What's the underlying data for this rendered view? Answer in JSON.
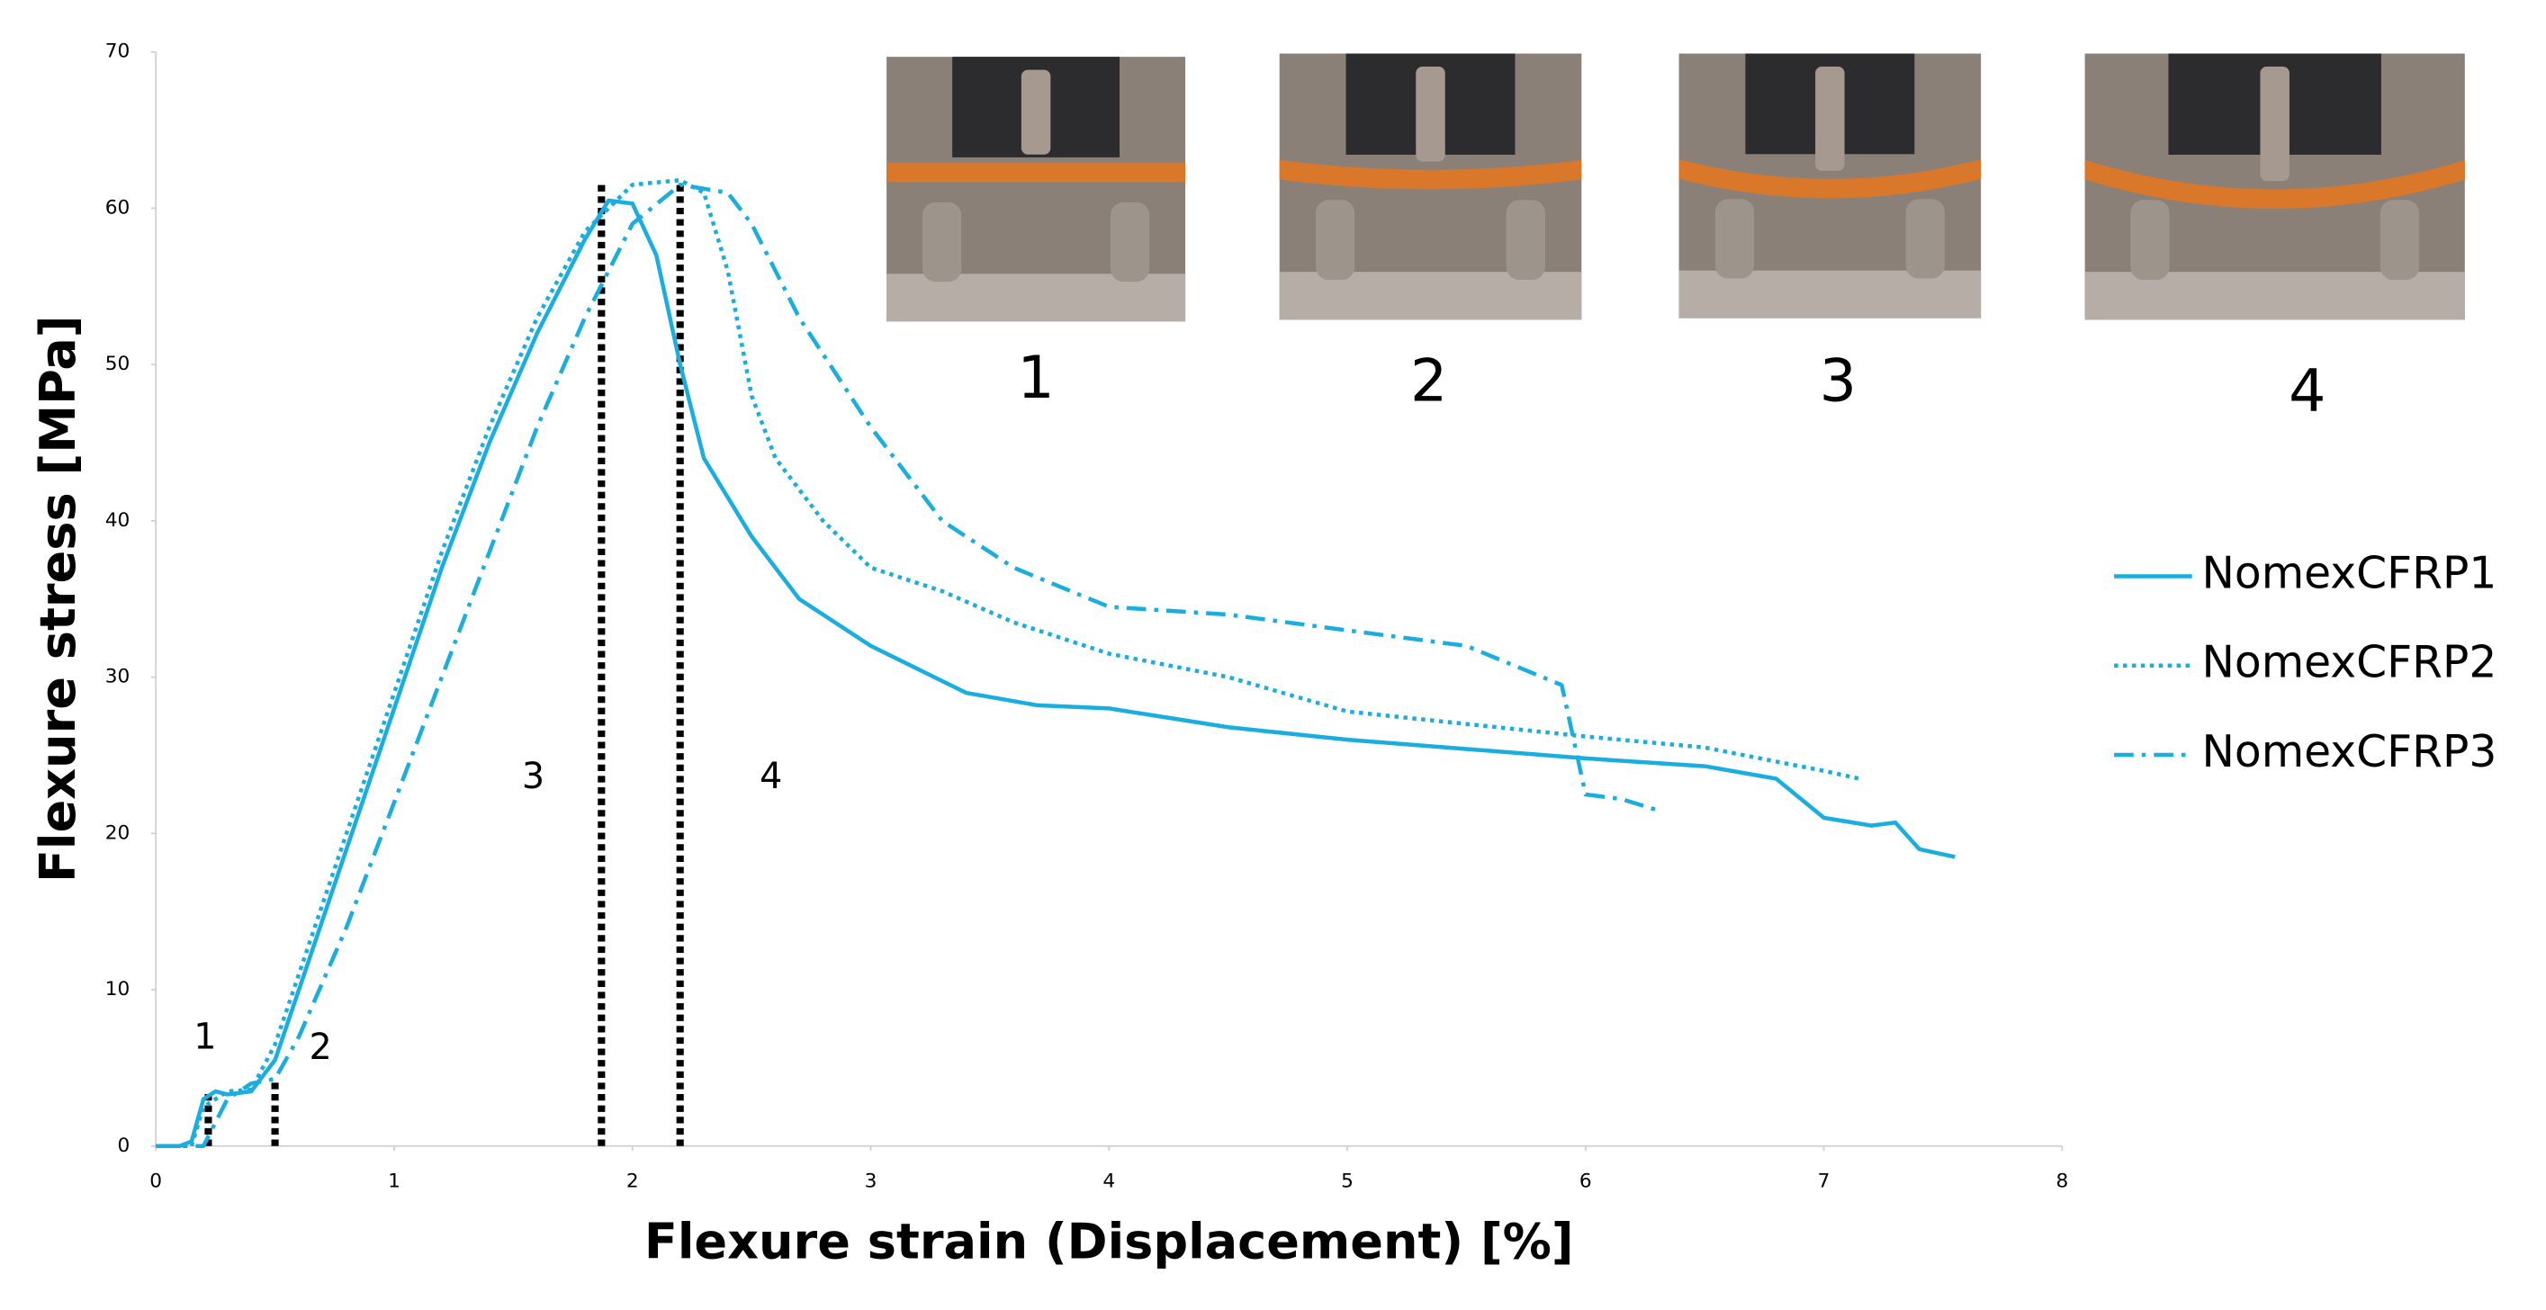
{
  "chart_data": {
    "type": "line",
    "xlabel": "Flexure strain (Displacement) [%]",
    "ylabel": "Flexure stress [MPa]",
    "xlim": [
      0,
      8
    ],
    "xticks": [
      0,
      1,
      2,
      3,
      4,
      5,
      6,
      7,
      8
    ],
    "ylim": [
      0,
      70
    ],
    "yticks": [
      0,
      10,
      20,
      30,
      40,
      50,
      60,
      70
    ],
    "grid": false,
    "legend": "right",
    "series": [
      {
        "name": "NomexCFRP1",
        "color": "#1aaee0",
        "linestyle": "solid",
        "x": [
          0,
          0.1,
          0.15,
          0.2,
          0.25,
          0.3,
          0.4,
          0.5,
          0.6,
          0.8,
          1.0,
          1.2,
          1.4,
          1.6,
          1.8,
          1.9,
          2.0,
          2.1,
          2.2,
          2.3,
          2.5,
          2.7,
          3.0,
          3.2,
          3.4,
          3.7,
          4.0,
          4.5,
          5.0,
          5.5,
          6.0,
          6.5,
          6.8,
          7.0,
          7.2,
          7.3,
          7.4,
          7.55
        ],
        "values": [
          0,
          0,
          0.3,
          3,
          3.5,
          3.3,
          3.5,
          5.5,
          10,
          19,
          28,
          37,
          45,
          52,
          58,
          60.5,
          60.3,
          57,
          50,
          44,
          39,
          35,
          32,
          30.5,
          29,
          28.2,
          28,
          26.8,
          26,
          25.4,
          24.8,
          24.3,
          23.5,
          21,
          20.5,
          20.7,
          19,
          18.5
        ]
      },
      {
        "name": "NomexCFRP2",
        "color": "#1aaee0",
        "linestyle": "dotted",
        "x": [
          0,
          0.15,
          0.2,
          0.3,
          0.4,
          0.5,
          0.6,
          0.8,
          1.0,
          1.2,
          1.4,
          1.6,
          1.8,
          2.0,
          2.2,
          2.3,
          2.4,
          2.5,
          2.6,
          2.8,
          3.0,
          3.3,
          3.6,
          4.0,
          4.5,
          5.0,
          5.5,
          6.0,
          6.5,
          7.0,
          7.15
        ],
        "values": [
          0,
          0,
          2.5,
          3.5,
          3.6,
          6.5,
          11,
          20,
          29,
          38,
          46,
          53,
          58.5,
          61.5,
          61.8,
          61,
          56,
          48,
          44,
          40,
          37,
          35.5,
          33.5,
          31.5,
          30,
          27.8,
          27,
          26.2,
          25.5,
          24,
          23.5
        ]
      },
      {
        "name": "NomexCFRP3",
        "color": "#1aaee0",
        "linestyle": "dashdot",
        "x": [
          0,
          0.2,
          0.3,
          0.4,
          0.5,
          0.6,
          0.8,
          1.0,
          1.2,
          1.4,
          1.6,
          1.8,
          2.0,
          2.2,
          2.4,
          2.5,
          2.7,
          3.0,
          3.3,
          3.6,
          4.0,
          4.5,
          5.0,
          5.5,
          5.9,
          5.95,
          6.0,
          6.15,
          6.3
        ],
        "values": [
          0,
          0,
          3,
          4,
          4.3,
          7,
          14,
          22,
          30,
          38,
          46,
          53,
          59,
          61.5,
          61,
          59,
          53,
          46,
          40,
          37,
          34.5,
          34,
          33,
          32,
          29.5,
          26,
          22.5,
          22.2,
          21.5
        ]
      }
    ],
    "markers": [
      {
        "label": "1",
        "x": 0.22,
        "y": 3.5
      },
      {
        "label": "2",
        "x": 0.5,
        "y": 4.3
      },
      {
        "label": "3",
        "x": 1.87,
        "y": 61.5
      },
      {
        "label": "4",
        "x": 2.2,
        "y": 61.5
      }
    ],
    "photos": [
      "1",
      "2",
      "3",
      "4"
    ]
  }
}
